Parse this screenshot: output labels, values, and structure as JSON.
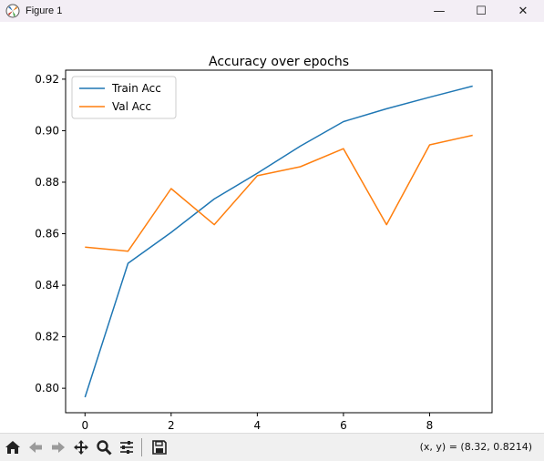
{
  "window": {
    "title": "Figure 1",
    "minimize_glyph": "—",
    "maximize_glyph": "☐",
    "close_glyph": "✕"
  },
  "toolbar": {
    "icons": [
      "home-icon",
      "back-arrow-icon",
      "forward-arrow-icon",
      "pan-icon",
      "zoom-icon",
      "configure-subplots-icon",
      "save-icon"
    ],
    "coordinates": "(x, y) = (8.32, 0.8214)"
  },
  "chart_data": {
    "type": "line",
    "title": "Accuracy over epochs",
    "xlabel": "",
    "ylabel": "",
    "x": [
      0,
      1,
      2,
      3,
      4,
      5,
      6,
      7,
      8,
      9
    ],
    "xlim": [
      -0.45,
      9.45
    ],
    "ylim": [
      0.7905,
      0.9235
    ],
    "xticks": [
      0,
      2,
      4,
      6,
      8
    ],
    "yticks": [
      0.8,
      0.82,
      0.84,
      0.86,
      0.88,
      0.9,
      0.92
    ],
    "ytick_labels": [
      "0.80",
      "0.82",
      "0.84",
      "0.86",
      "0.88",
      "0.90",
      "0.92"
    ],
    "series": [
      {
        "name": "Train Acc",
        "color": "#1f77b4",
        "values": [
          0.7965,
          0.8485,
          0.8605,
          0.8735,
          0.8835,
          0.894,
          0.9035,
          0.9085,
          0.913,
          0.9173
        ]
      },
      {
        "name": "Val Acc",
        "color": "#ff7f0e",
        "values": [
          0.8548,
          0.8532,
          0.8775,
          0.8635,
          0.8825,
          0.886,
          0.893,
          0.8635,
          0.8945,
          0.8982
        ]
      }
    ],
    "legend": "upper-left",
    "grid": false
  }
}
